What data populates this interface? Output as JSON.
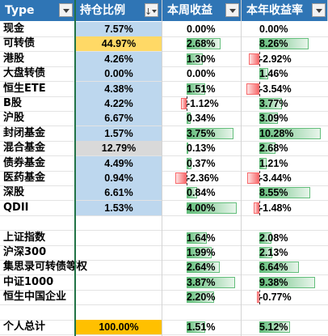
{
  "header": {
    "col_type": "Type",
    "col_ratio": "持仓比例",
    "col_week": "本周收益",
    "col_year": "本年收益率"
  },
  "colors": {
    "header_bg": "#2f75b5",
    "ratio_blue": "#bdd7ee",
    "ratio_gold": "#ffd966",
    "ratio_gray": "#d9d9d9",
    "ratio_orange": "#ffc000",
    "positive_bar": "#63be7b",
    "negative_bar": "#f8696b"
  },
  "rows": [
    {
      "type": "现金",
      "ratio": "7.57%",
      "ratio_color": "blue",
      "week": "0.00%",
      "week_value": 0.0,
      "year": "0.00%",
      "year_value": 0.0
    },
    {
      "type": "可转债",
      "ratio": "44.97%",
      "ratio_color": "gold",
      "week": "2.68%",
      "week_value": 2.68,
      "year": "8.26%",
      "year_value": 8.26
    },
    {
      "type": "港股",
      "ratio": "4.26%",
      "ratio_color": "blue",
      "week": "1.30%",
      "week_value": 1.3,
      "year": "-2.92%",
      "year_value": -2.92
    },
    {
      "type": "大盘转债",
      "ratio": "0.00%",
      "ratio_color": "blue",
      "week": "0.00%",
      "week_value": 0.0,
      "year": "1.46%",
      "year_value": 1.46
    },
    {
      "type": "恒生ETE",
      "ratio": "4.38%",
      "ratio_color": "blue",
      "week": "1.51%",
      "week_value": 1.51,
      "year": "-3.54%",
      "year_value": -3.54
    },
    {
      "type": "B股",
      "ratio": "4.22%",
      "ratio_color": "blue",
      "week": "-1.12%",
      "week_value": -1.12,
      "year": "3.77%",
      "year_value": 3.77
    },
    {
      "type": "沪股",
      "ratio": "6.67%",
      "ratio_color": "blue",
      "week": "0.34%",
      "week_value": 0.34,
      "year": "3.09%",
      "year_value": 3.09
    },
    {
      "type": "封闭基金",
      "ratio": "1.57%",
      "ratio_color": "blue",
      "week": "3.75%",
      "week_value": 3.75,
      "year": "10.28%",
      "year_value": 10.28
    },
    {
      "type": "混合基金",
      "ratio": "12.79%",
      "ratio_color": "gray",
      "week": "0.13%",
      "week_value": 0.13,
      "year": "2.68%",
      "year_value": 2.68
    },
    {
      "type": "债券基金",
      "ratio": "4.49%",
      "ratio_color": "blue",
      "week": "0.37%",
      "week_value": 0.37,
      "year": "1.21%",
      "year_value": 1.21
    },
    {
      "type": "医药基金",
      "ratio": "0.94%",
      "ratio_color": "blue",
      "week": "-2.36%",
      "week_value": -2.36,
      "year": "-3.44%",
      "year_value": -3.44
    },
    {
      "type": "深股",
      "ratio": "6.61%",
      "ratio_color": "blue",
      "week": "0.84%",
      "week_value": 0.84,
      "year": "8.55%",
      "year_value": 8.55
    },
    {
      "type": "QDII",
      "ratio": "1.53%",
      "ratio_color": "blue",
      "week": "4.00%",
      "week_value": 4.0,
      "year": "-1.48%",
      "year_value": -1.48
    },
    {
      "type": "",
      "ratio": "",
      "ratio_color": "none",
      "week": "",
      "week_value": null,
      "year": "",
      "year_value": null
    },
    {
      "type": "上证指数",
      "ratio": "",
      "ratio_color": "none",
      "week": "1.64%",
      "week_value": 1.64,
      "year": "2.08%",
      "year_value": 2.08
    },
    {
      "type": "沪深300",
      "ratio": "",
      "ratio_color": "none",
      "week": "1.99%",
      "week_value": 1.99,
      "year": "2.13%",
      "year_value": 2.13
    },
    {
      "type": "集思录可转债等权",
      "ratio": "",
      "ratio_color": "none",
      "week": "2.64%",
      "week_value": 2.64,
      "year": "6.64%",
      "year_value": 6.64
    },
    {
      "type": "中证1000",
      "ratio": "",
      "ratio_color": "none",
      "week": "3.87%",
      "week_value": 3.87,
      "year": "9.38%",
      "year_value": 9.38
    },
    {
      "type": "恒生中国企业",
      "ratio": "",
      "ratio_color": "none",
      "week": "2.20%",
      "week_value": 2.2,
      "year": "-0.77%",
      "year_value": -0.77
    },
    {
      "type": "",
      "ratio": "",
      "ratio_color": "none",
      "week": "",
      "week_value": null,
      "year": "",
      "year_value": null
    },
    {
      "type": "个人总计",
      "ratio": "100.00%",
      "ratio_color": "orange",
      "week": "1.51%",
      "week_value": 1.51,
      "year": "5.12%",
      "year_value": 5.12
    }
  ]
}
